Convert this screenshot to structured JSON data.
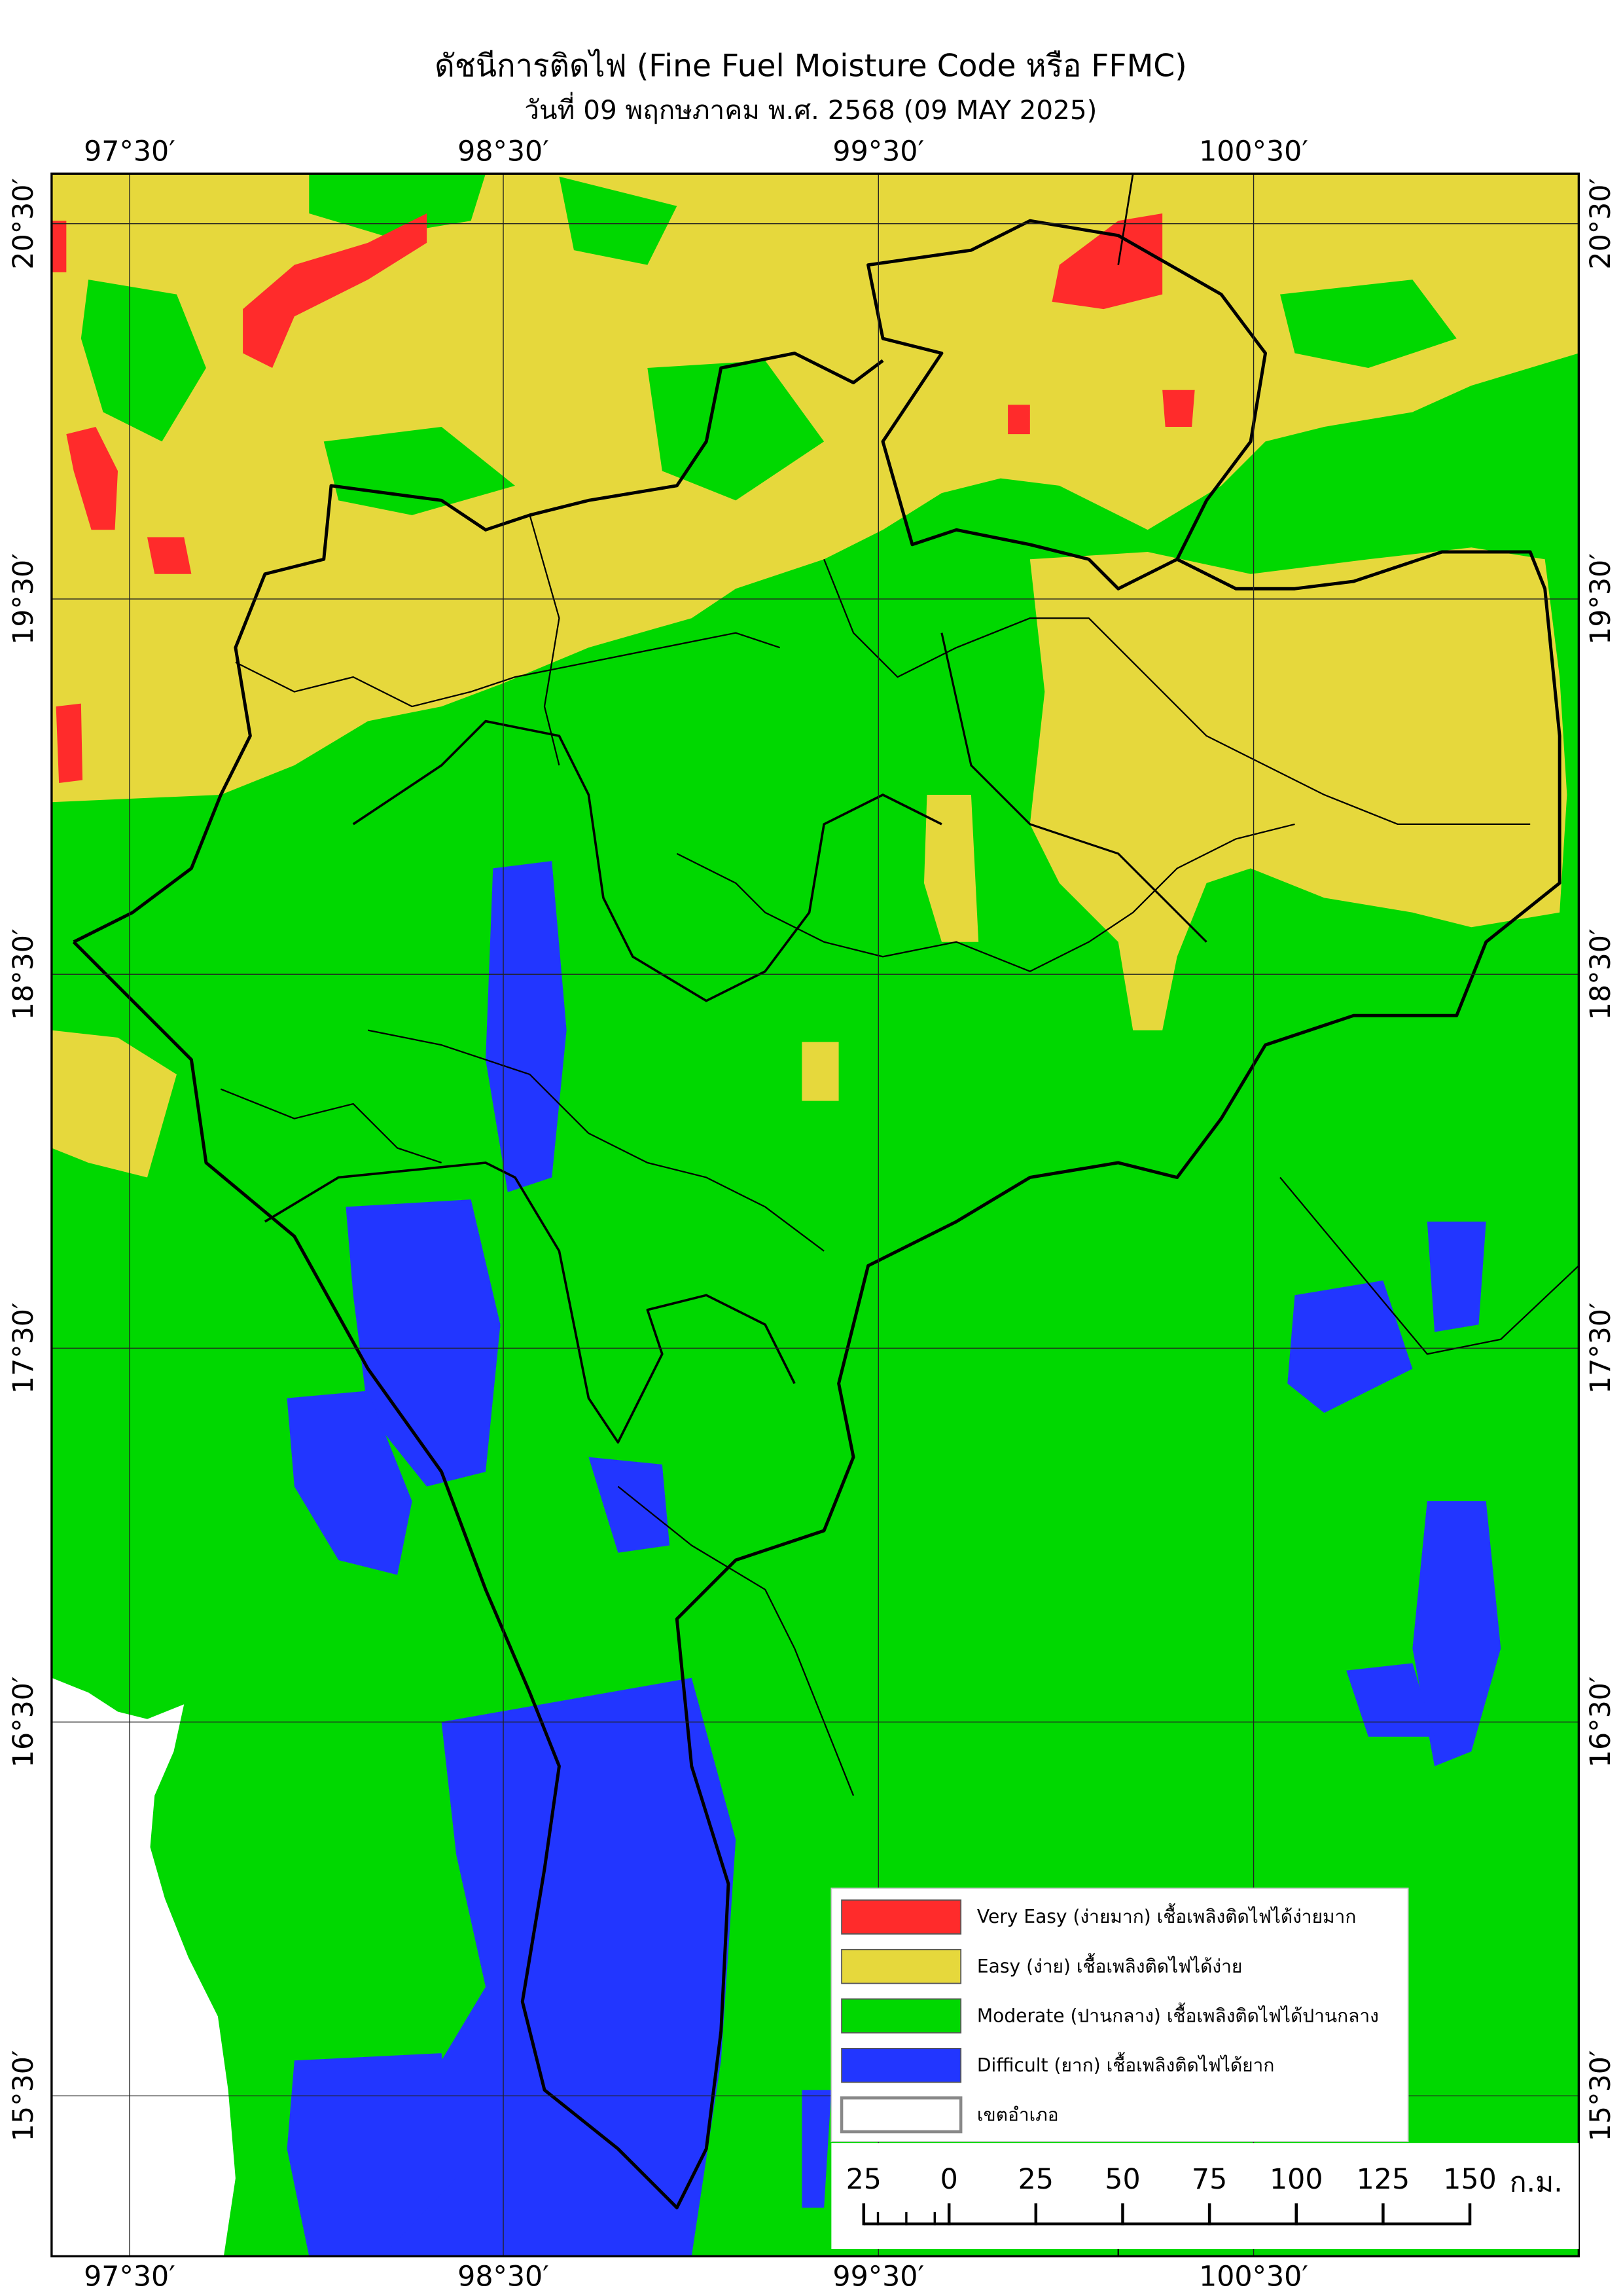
{
  "title": "ดัชนีการติดไฟ (Fine Fuel Moisture Code หรือ FFMC)",
  "subtitle": "วันที่ 09 พฤกษภาคม พ.ศ. 2568 (09 MAY 2025)",
  "graticule": {
    "longitudes": [
      "97°30′",
      "98°30′",
      "99°30′",
      "100°30′"
    ],
    "latitudes": [
      "20°30′",
      "19°30′",
      "18°30′",
      "17°30′",
      "16°30′",
      "15°30′"
    ]
  },
  "legend": [
    {
      "label": "Very Easy (ง่ายมาก) เชื้อเพลิงติดไฟได้ง่ายมาก",
      "color": "#ff2b2b"
    },
    {
      "label": "Easy (ง่าย) เชื้อเพลิงติดไฟได้ง่าย",
      "color": "#e6d83c"
    },
    {
      "label": "Moderate (ปานกลาง) เชื้อเพลิงติดไฟได้ปานกลาง",
      "color": "#00d800"
    },
    {
      "label": "Difficult (ยาก) เชื้อเพลิงติดไฟได้ยาก",
      "color": "#2236ff"
    },
    {
      "label": "เขตอำเภอ",
      "color": "#ffffff"
    }
  ],
  "scale_bar": {
    "labels": [
      25,
      0,
      25,
      50,
      75,
      100,
      125,
      150
    ],
    "unit": "ก.ม."
  }
}
